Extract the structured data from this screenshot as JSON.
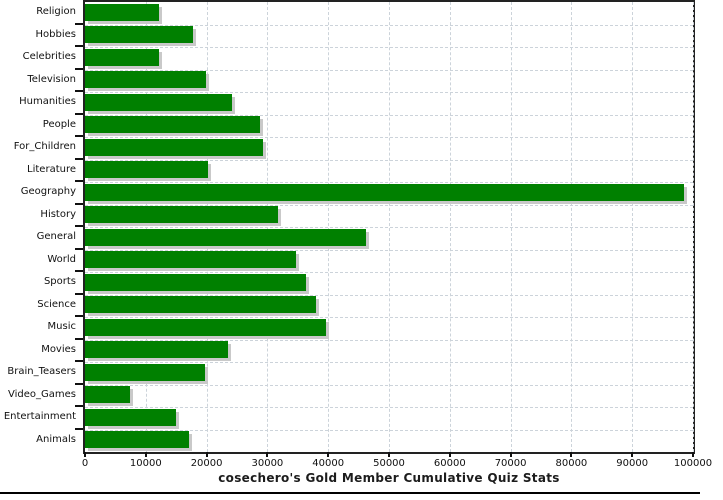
{
  "chart_data": {
    "type": "bar",
    "orientation": "horizontal",
    "title": "cosechero's Gold Member Cumulative Quiz Stats",
    "categories": [
      "Religion",
      "Hobbies",
      "Celebrities",
      "Television",
      "Humanities",
      "People",
      "For_Children",
      "Literature",
      "Geography",
      "History",
      "General",
      "World",
      "Sports",
      "Science",
      "Music",
      "Movies",
      "Brain_Teasers",
      "Video_Games",
      "Entertainment",
      "Animals"
    ],
    "values": [
      12100,
      17700,
      12200,
      19900,
      24200,
      28800,
      29300,
      20300,
      98600,
      31800,
      46200,
      34700,
      36400,
      38000,
      39600,
      23500,
      19800,
      7400,
      15000,
      17100
    ],
    "xlim": [
      0,
      100000
    ],
    "x_ticks": [
      0,
      10000,
      20000,
      30000,
      40000,
      50000,
      60000,
      70000,
      80000,
      90000,
      100000
    ],
    "x_tick_labels": [
      "0",
      "10000",
      "20000",
      "30000",
      "40000",
      "50000",
      "60000",
      "70000",
      "80000",
      "90000",
      "100000"
    ],
    "xlabel": "",
    "ylabel": "",
    "grid": "dashed-vertical-and-horizontal",
    "legend": "none",
    "bar_color": "#008000",
    "shadow_color": "#c9c9c9",
    "gridline_color": "#ccd3da",
    "border_color": "#222222"
  }
}
